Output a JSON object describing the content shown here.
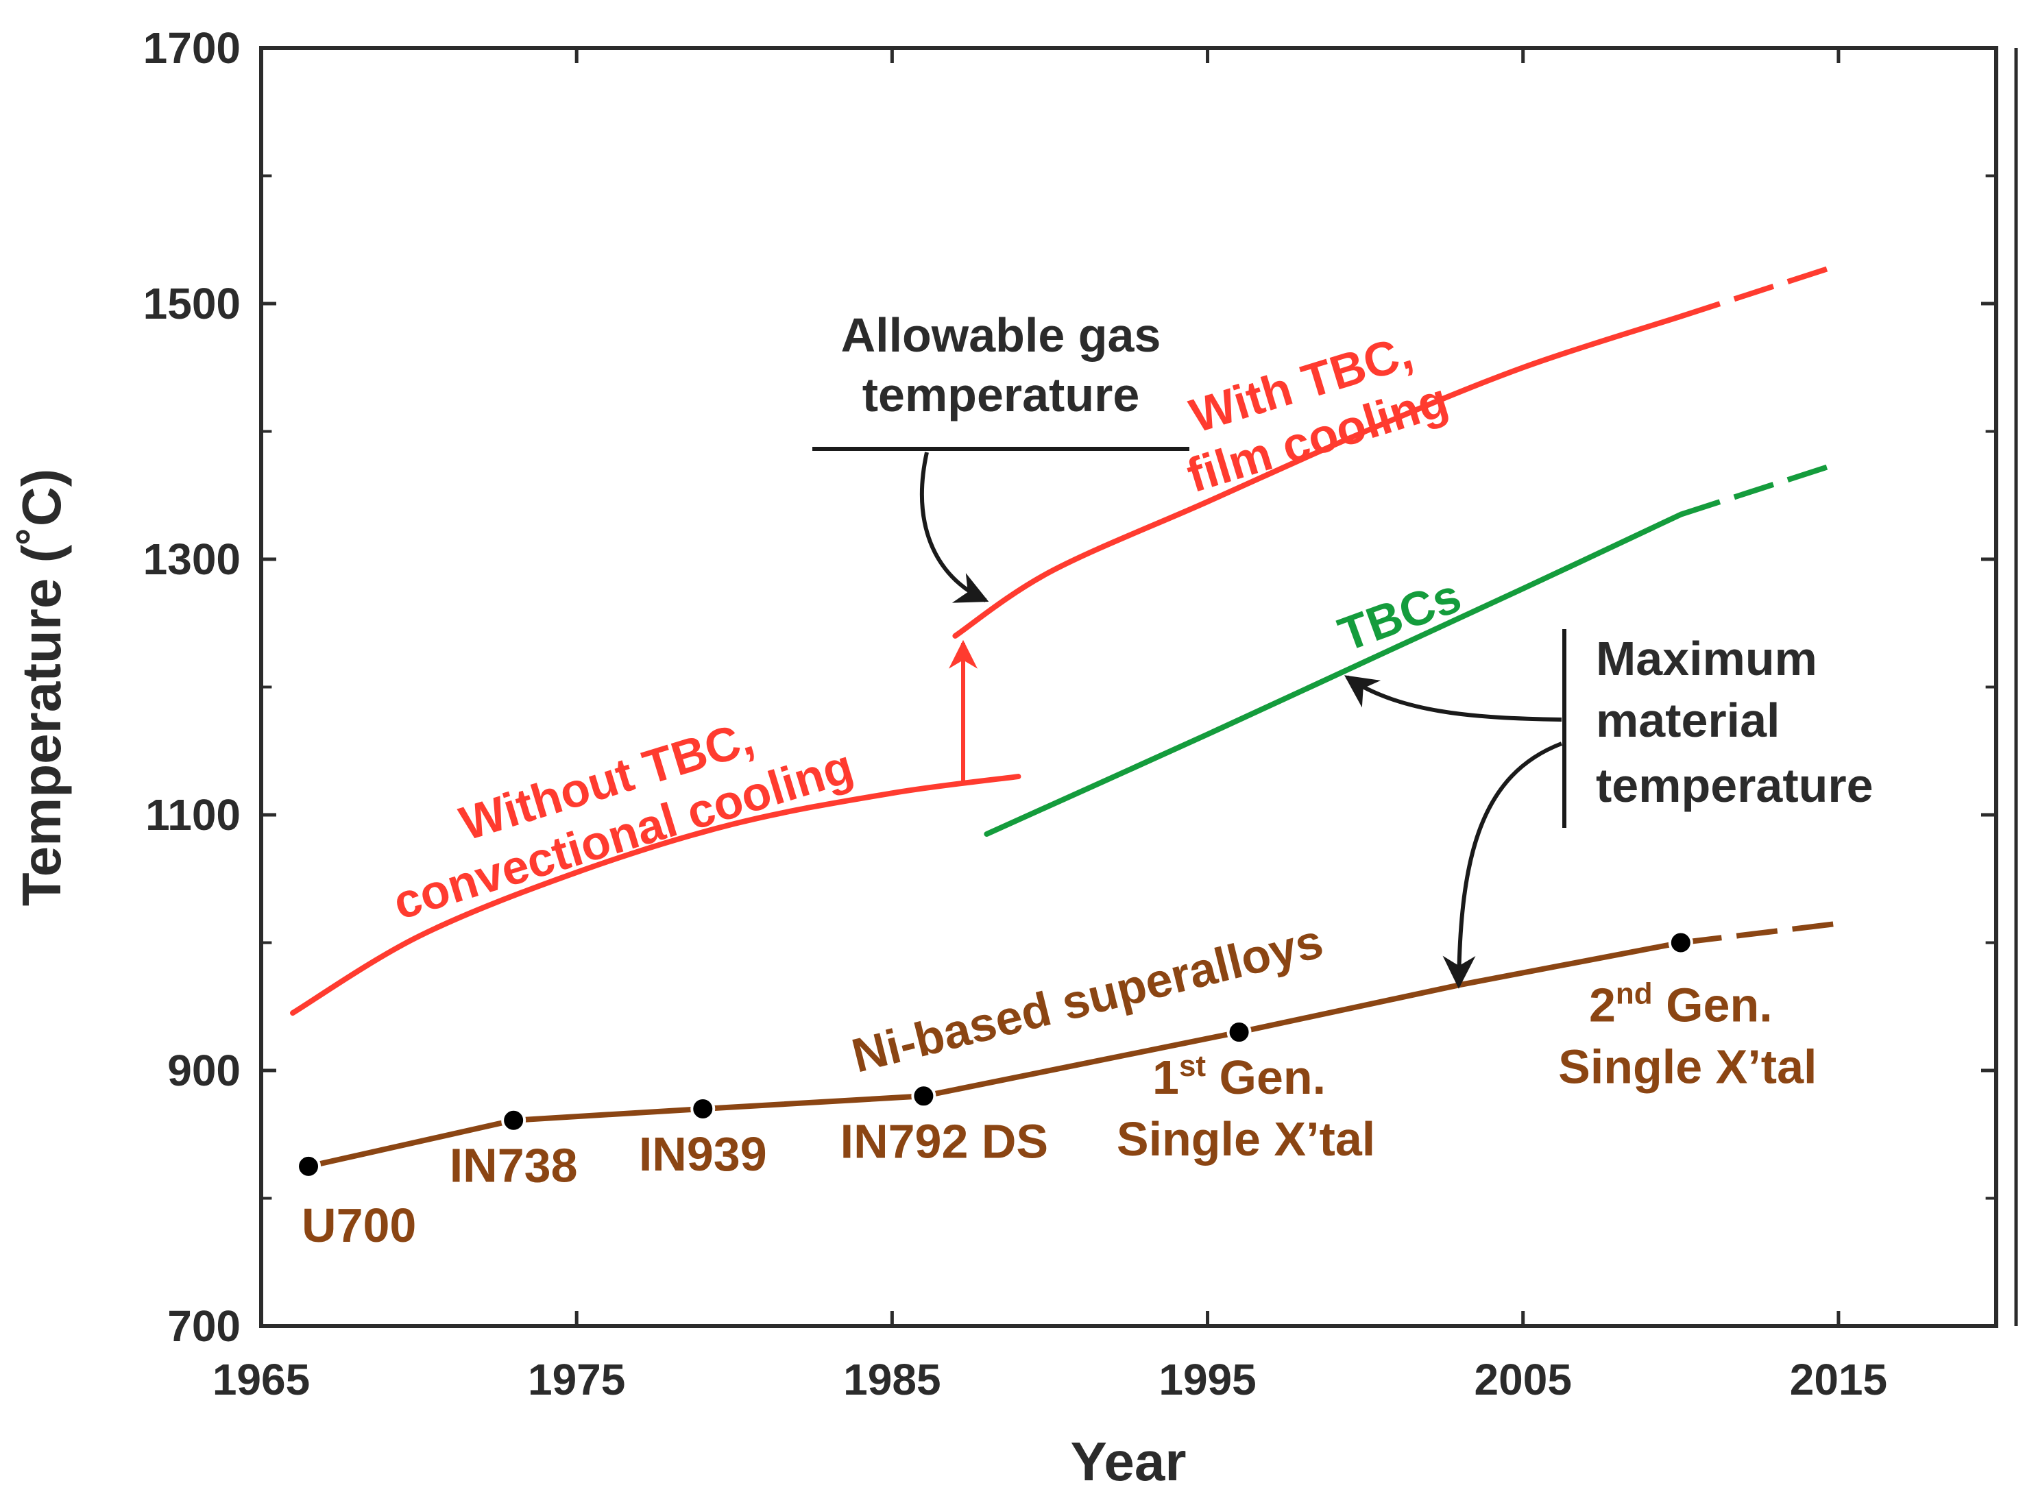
{
  "chart_data": {
    "type": "line",
    "xlabel": "Year",
    "ylabel": "Temperature (˚C)",
    "xlim": [
      1965,
      2020
    ],
    "ylim": [
      700,
      1700
    ],
    "x_ticks": [
      1965,
      1975,
      1985,
      1995,
      2005,
      2015
    ],
    "y_ticks": [
      700,
      900,
      1100,
      1300,
      1500,
      1700
    ],
    "colors": {
      "red": "#ff3b2f",
      "green": "#149c3c",
      "brown": "#8b4513",
      "black": "#1a1a1a"
    },
    "series": [
      {
        "name": "Without TBC, convectional cooling",
        "color": "#ff3b2f",
        "x": [
          1966,
          1970,
          1975,
          1980,
          1985,
          1989
        ],
        "y": [
          945,
          1005,
          1055,
          1093,
          1117,
          1130
        ]
      },
      {
        "name": "With TBC, film cooling",
        "color": "#ff3b2f",
        "x": [
          1987,
          1990,
          1995,
          2000,
          2005,
          2010
        ],
        "y": [
          1240,
          1290,
          1345,
          1400,
          1450,
          1490
        ],
        "projection": {
          "x": [
            2010,
            2015
          ],
          "y": [
            1490,
            1530
          ]
        }
      },
      {
        "name": "TBCs",
        "color": "#149c3c",
        "x": [
          1988,
          1995,
          2000,
          2005,
          2010
        ],
        "y": [
          1085,
          1163,
          1220,
          1277,
          1335
        ],
        "projection": {
          "x": [
            2010,
            2015
          ],
          "y": [
            1335,
            1375
          ]
        }
      },
      {
        "name": "Ni-based superalloys",
        "color": "#8b4513",
        "x": [
          1966.5,
          1973,
          1979,
          1986,
          1996,
          2003,
          2010
        ],
        "y": [
          825,
          861,
          870,
          880,
          930,
          967,
          1000
        ],
        "projection": {
          "x": [
            2010,
            2015
          ],
          "y": [
            1000,
            1015
          ]
        },
        "points": [
          {
            "x": 1966.5,
            "y": 825,
            "label": "U700"
          },
          {
            "x": 1973,
            "y": 861,
            "label": "IN738"
          },
          {
            "x": 1979,
            "y": 870,
            "label": "IN939"
          },
          {
            "x": 1986,
            "y": 880,
            "label": "IN792 DS"
          },
          {
            "x": 1996,
            "y": 930,
            "label": "Single X’tal",
            "gen": {
              "num": "1",
              "sup": "st",
              "rest": " Gen."
            }
          },
          {
            "x": 2010,
            "y": 1000,
            "label": "Single X’tal",
            "gen": {
              "num": "2",
              "sup": "nd",
              "rest": " Gen."
            }
          }
        ]
      }
    ],
    "annotations": {
      "allowable_line1": "Allowable gas",
      "allowable_line2": "temperature",
      "with_tbc_line1": "With TBC,",
      "with_tbc_line2": "film cooling",
      "without_tbc_line1": "Without TBC,",
      "without_tbc_line2": "convectional cooling",
      "tbcs": "TBCs",
      "superalloys": "Ni-based superalloys",
      "max_line1": "Maximum",
      "max_line2": "material",
      "max_line3": "temperature"
    }
  }
}
